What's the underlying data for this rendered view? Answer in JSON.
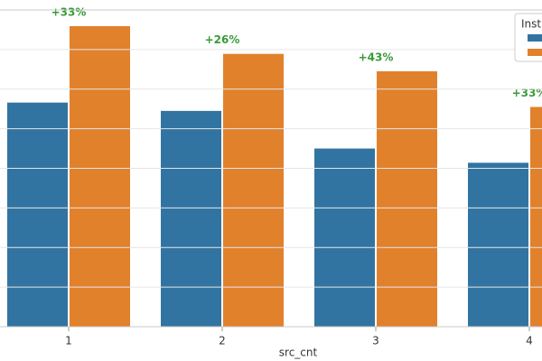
{
  "chart_data": {
    "type": "grouped_bar",
    "x_label": "src_cnt",
    "categories": [
      "1",
      "2",
      "3",
      "4"
    ],
    "series": [
      {
        "color": "#3274a1",
        "values": [
          5.66,
          5.45,
          4.5,
          4.14
        ]
      },
      {
        "color": "#e1812c",
        "values": [
          7.59,
          6.89,
          6.45,
          5.55
        ]
      }
    ],
    "annotations": [
      "+33%",
      "+26%",
      "+43%",
      "+33%"
    ],
    "annotation_color": "#3a9a3a",
    "legend_title": "Instru",
    "ylim": [
      0,
      8
    ],
    "yticks": [
      1,
      2,
      3,
      4,
      5,
      6,
      7
    ],
    "grid": true
  }
}
